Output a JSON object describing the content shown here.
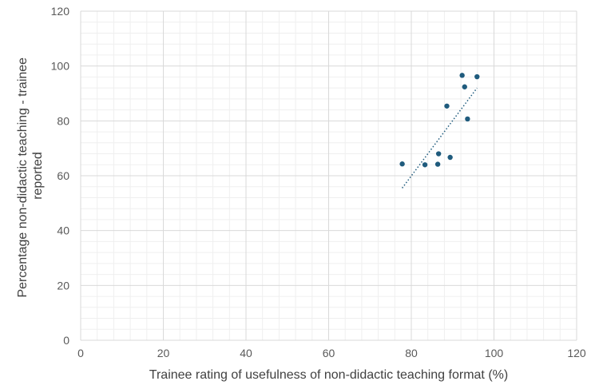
{
  "chart_data": {
    "type": "scatter",
    "xlabel": "Trainee rating of usefulness of non-didactic teaching format (%)",
    "ylabel_lines": [
      "Percentage non-didactic teaching - trainee",
      "reported"
    ],
    "xlim": [
      0,
      120
    ],
    "ylim": [
      0,
      120
    ],
    "x_ticks": [
      0,
      20,
      40,
      60,
      80,
      100,
      120
    ],
    "y_ticks": [
      0,
      20,
      40,
      60,
      80,
      100,
      120
    ],
    "grid": "major-and-minor",
    "legend": "none",
    "colors": {
      "points": "#1f5b7d",
      "trendline": "#1f5b7d",
      "major_grid": "#d9d9d9",
      "minor_grid": "#efefef"
    },
    "points": [
      {
        "x": 77.8,
        "y": 64.3
      },
      {
        "x": 83.3,
        "y": 64.0
      },
      {
        "x": 86.4,
        "y": 64.2
      },
      {
        "x": 86.6,
        "y": 68.0
      },
      {
        "x": 89.4,
        "y": 66.7
      },
      {
        "x": 88.6,
        "y": 85.4
      },
      {
        "x": 92.3,
        "y": 96.6
      },
      {
        "x": 92.9,
        "y": 92.4
      },
      {
        "x": 93.6,
        "y": 80.7
      },
      {
        "x": 95.9,
        "y": 96.1
      }
    ],
    "trendline": {
      "style": "dotted-linear",
      "x_range": [
        77.8,
        95.9
      ],
      "y_range": [
        55.5,
        92.0
      ]
    }
  }
}
